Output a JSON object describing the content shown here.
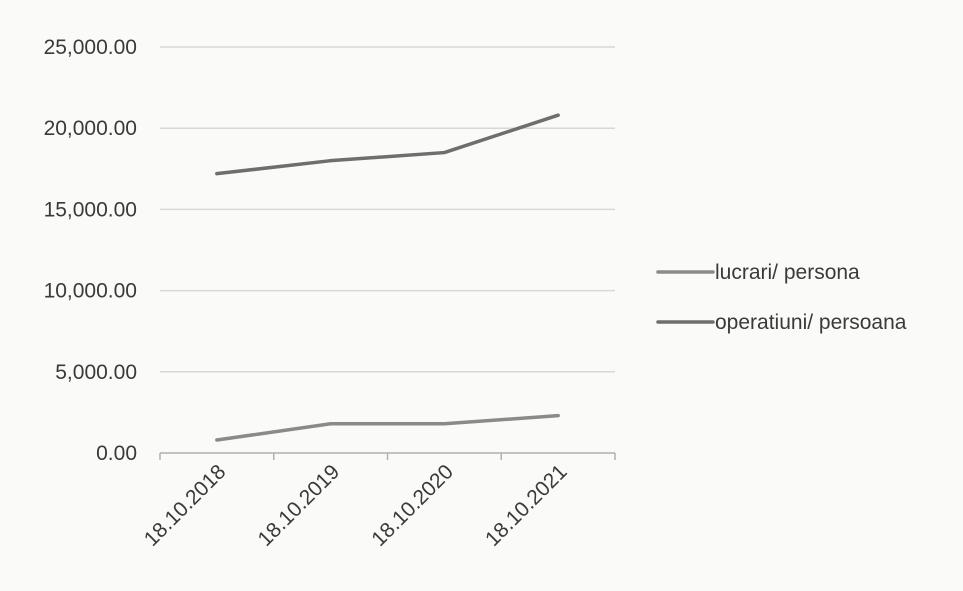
{
  "chart_data": {
    "type": "line",
    "title": "",
    "xlabel": "",
    "ylabel": "",
    "categories": [
      "18.10.2018",
      "18.10.2019",
      "18.10.2020",
      "18.10.2021"
    ],
    "ylim": [
      0,
      25000
    ],
    "yticks": [
      "0.00",
      "5,000.00",
      "10,000.00",
      "15,000.00",
      "20,000.00",
      "25,000.00"
    ],
    "grid": true,
    "legend_position": "right",
    "series": [
      {
        "name": "lucrari/ persona",
        "values": [
          800,
          1800,
          1800,
          2300
        ],
        "color": "#8a8a8a"
      },
      {
        "name": "operatiuni/ persoana",
        "values": [
          17200,
          18000,
          18500,
          20800
        ],
        "color": "#6e6e6e"
      }
    ]
  }
}
